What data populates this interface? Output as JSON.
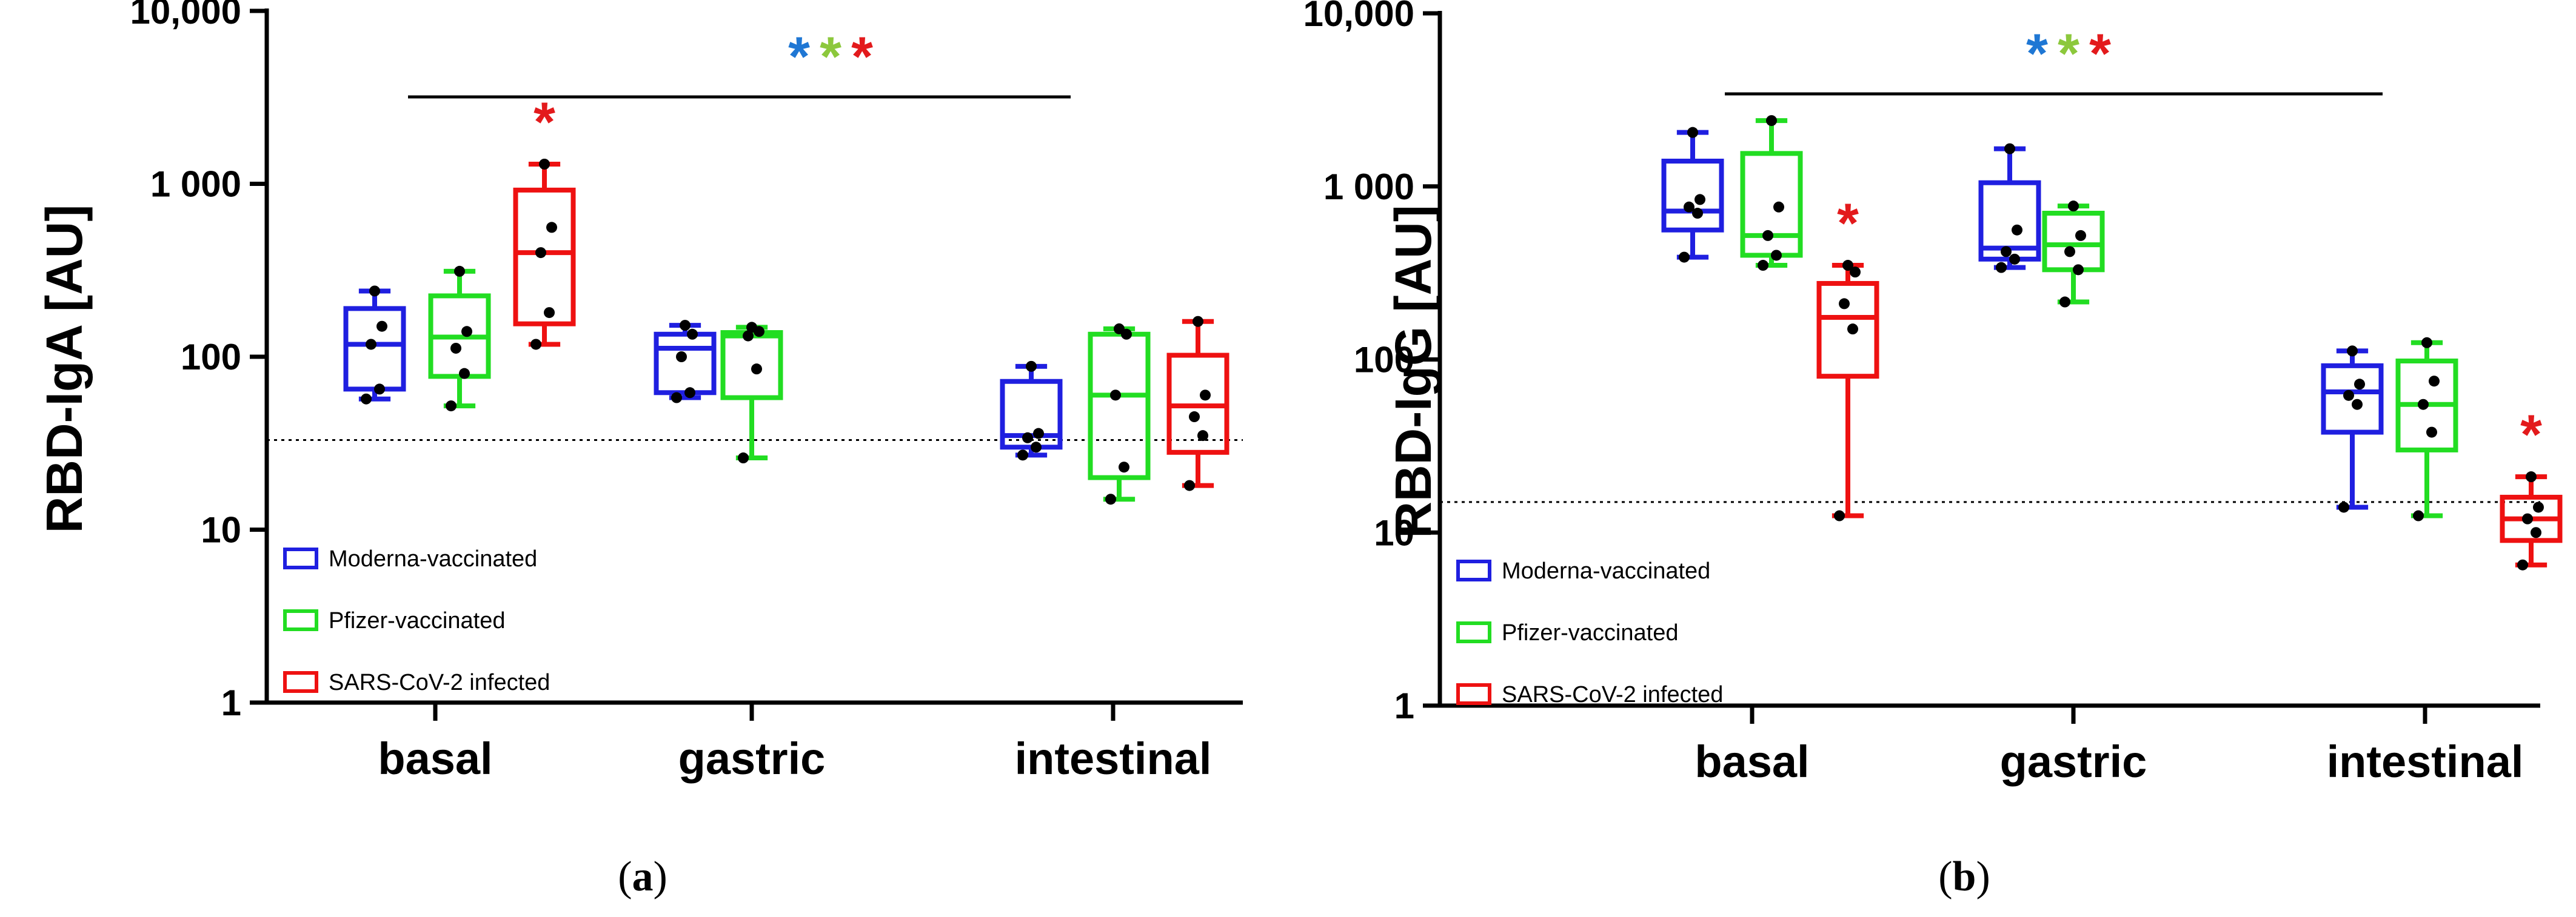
{
  "legend": [
    {
      "label": "Moderna-vaccinated",
      "color": "#1f1fe0"
    },
    {
      "label": "Pfizer-vaccinated",
      "color": "#22dd22"
    },
    {
      "label": "SARS-CoV-2 infected",
      "color": "#ee1111"
    }
  ],
  "colors": {
    "star_blue": "#1f77d4",
    "star_green": "#8cc83c",
    "star_red": "#e31a1c",
    "point": "#000000",
    "axis": "#000000"
  },
  "chart_data": [
    {
      "type": "box",
      "panel": "a",
      "caption_letter": "a",
      "ylabel": "RBD-IgA [AU]",
      "yscale": "log",
      "ylim": [
        1,
        10000
      ],
      "yticks": [
        1,
        10,
        100,
        1000,
        10000
      ],
      "ytick_labels": [
        "1",
        "10",
        "100",
        "1 000",
        "10,000"
      ],
      "categories": [
        "basal",
        "gastric",
        "intestinal"
      ],
      "lod": 33,
      "significance_bar": {
        "from": "basal",
        "to": "intestinal",
        "stars": [
          "*",
          "*",
          "*"
        ]
      },
      "series": [
        {
          "name": "Moderna-vaccinated",
          "boxes": [
            {
              "category": "basal",
              "min": 57,
              "q1": 65,
              "median": 118,
              "q3": 190,
              "max": 240,
              "points": [
                57,
                65,
                118,
                150,
                240
              ]
            },
            {
              "category": "gastric",
              "min": 58,
              "q1": 62,
              "median": 112,
              "q3": 135,
              "max": 152,
              "points": [
                58,
                62,
                100,
                135,
                152
              ]
            },
            {
              "category": "intestinal",
              "min": 27,
              "q1": 30,
              "median": 35,
              "q3": 72,
              "max": 88,
              "points": [
                27,
                30,
                34,
                36,
                88
              ]
            }
          ]
        },
        {
          "name": "Pfizer-vaccinated",
          "boxes": [
            {
              "category": "basal",
              "min": 52,
              "q1": 77,
              "median": 130,
              "q3": 225,
              "max": 312,
              "points": [
                52,
                80,
                112,
                140,
                312
              ]
            },
            {
              "category": "gastric",
              "min": 26,
              "q1": 58,
              "median": 132,
              "q3": 138,
              "max": 148,
              "points": [
                26,
                85,
                132,
                140,
                148
              ]
            },
            {
              "category": "intestinal",
              "min": 15,
              "q1": 20,
              "median": 60,
              "q3": 135,
              "max": 145,
              "points": [
                15,
                23,
                60,
                135,
                145
              ]
            }
          ]
        },
        {
          "name": "SARS-CoV-2 infected",
          "boxes": [
            {
              "category": "basal",
              "min": 118,
              "q1": 155,
              "median": 400,
              "q3": 920,
              "max": 1300,
              "points": [
                118,
                180,
                400,
                560,
                1300
              ],
              "star": "*"
            },
            {
              "category": "intestinal",
              "min": 18,
              "q1": 28,
              "median": 52,
              "q3": 102,
              "max": 160,
              "points": [
                18,
                35,
                45,
                60,
                160
              ]
            }
          ]
        }
      ]
    },
    {
      "type": "box",
      "panel": "b",
      "caption_letter": "b",
      "ylabel": "RBD-IgG [AU]",
      "yscale": "log",
      "ylim": [
        1,
        10000
      ],
      "yticks": [
        1,
        10,
        100,
        1000,
        10000
      ],
      "ytick_labels": [
        "1",
        "10",
        "100",
        "1 000",
        "10,000"
      ],
      "categories": [
        "basal",
        "gastric",
        "intestinal"
      ],
      "lod": 15,
      "significance_bar": {
        "from": "basal",
        "to": "intestinal",
        "stars": [
          "*",
          "*",
          "*"
        ]
      },
      "series": [
        {
          "name": "Moderna-vaccinated",
          "boxes": [
            {
              "category": "basal",
              "min": 390,
              "q1": 560,
              "median": 720,
              "q3": 1400,
              "max": 2050,
              "points": [
                390,
                700,
                760,
                840,
                2050
              ]
            },
            {
              "category": "gastric",
              "min": 340,
              "q1": 380,
              "median": 440,
              "q3": 1050,
              "max": 1650,
              "points": [
                340,
                380,
                420,
                560,
                1650
              ]
            },
            {
              "category": "intestinal",
              "min": 14,
              "q1": 38,
              "median": 65,
              "q3": 92,
              "max": 112,
              "points": [
                14,
                55,
                62,
                72,
                112
              ]
            }
          ]
        },
        {
          "name": "Pfizer-vaccinated",
          "boxes": [
            {
              "category": "basal",
              "min": 350,
              "q1": 400,
              "median": 520,
              "q3": 1550,
              "max": 2400,
              "points": [
                350,
                400,
                520,
                760,
                2400
              ]
            },
            {
              "category": "gastric",
              "min": 215,
              "q1": 330,
              "median": 460,
              "q3": 700,
              "max": 770,
              "points": [
                215,
                330,
                420,
                520,
                770
              ]
            },
            {
              "category": "intestinal",
              "min": 12.5,
              "q1": 30,
              "median": 55,
              "q3": 98,
              "max": 125,
              "points": [
                12.5,
                38,
                55,
                75,
                125
              ]
            }
          ]
        },
        {
          "name": "SARS-CoV-2 infected",
          "boxes": [
            {
              "category": "basal",
              "min": 12.5,
              "q1": 80,
              "median": 175,
              "q3": 275,
              "max": 350,
              "points": [
                12.5,
                150,
                210,
                320,
                350
              ],
              "star": "*"
            },
            {
              "category": "intestinal",
              "min": 6.5,
              "q1": 9,
              "median": 12,
              "q3": 16,
              "max": 21,
              "points": [
                6.5,
                10,
                12,
                14,
                21
              ],
              "star": "*"
            }
          ]
        }
      ]
    }
  ]
}
